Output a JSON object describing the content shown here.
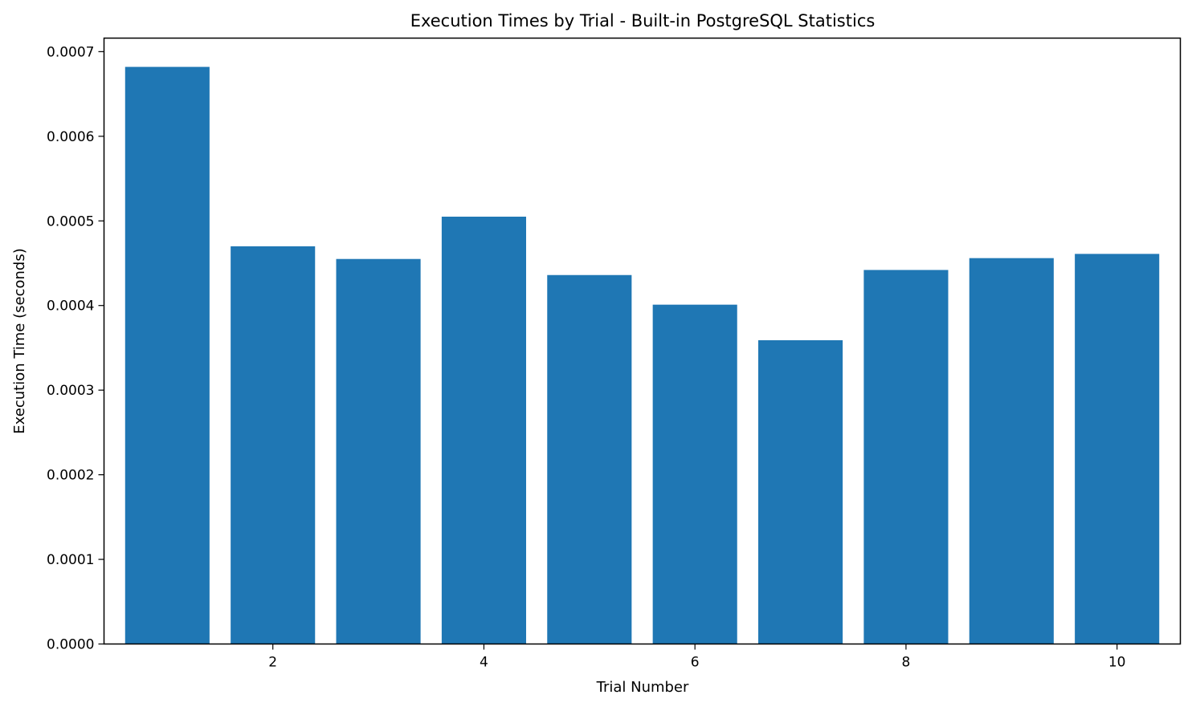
{
  "chart_data": {
    "type": "bar",
    "title": "Execution Times by Trial - Built-in PostgreSQL Statistics",
    "xlabel": "Trial Number",
    "ylabel": "Execution Time (seconds)",
    "x": [
      1,
      2,
      3,
      4,
      5,
      6,
      7,
      8,
      9,
      10
    ],
    "values": [
      0.000682,
      0.00047,
      0.000455,
      0.000505,
      0.000436,
      0.000401,
      0.000359,
      0.000442,
      0.000456,
      0.000461
    ],
    "bar_color": "#1f77b4",
    "xlim": [
      0.4,
      10.6
    ],
    "ylim": [
      0,
      0.000716
    ],
    "xticks": [
      {
        "value": 2,
        "label": "2"
      },
      {
        "value": 4,
        "label": "4"
      },
      {
        "value": 6,
        "label": "6"
      },
      {
        "value": 8,
        "label": "8"
      },
      {
        "value": 10,
        "label": "10"
      }
    ],
    "yticks": [
      {
        "value": 0.0,
        "label": "0.0000"
      },
      {
        "value": 0.0001,
        "label": "0.0001"
      },
      {
        "value": 0.0002,
        "label": "0.0002"
      },
      {
        "value": 0.0003,
        "label": "0.0003"
      },
      {
        "value": 0.0004,
        "label": "0.0004"
      },
      {
        "value": 0.0005,
        "label": "0.0005"
      },
      {
        "value": 0.0006,
        "label": "0.0006"
      },
      {
        "value": 0.0007,
        "label": "0.0007"
      }
    ],
    "grid": false,
    "legend": "none"
  }
}
